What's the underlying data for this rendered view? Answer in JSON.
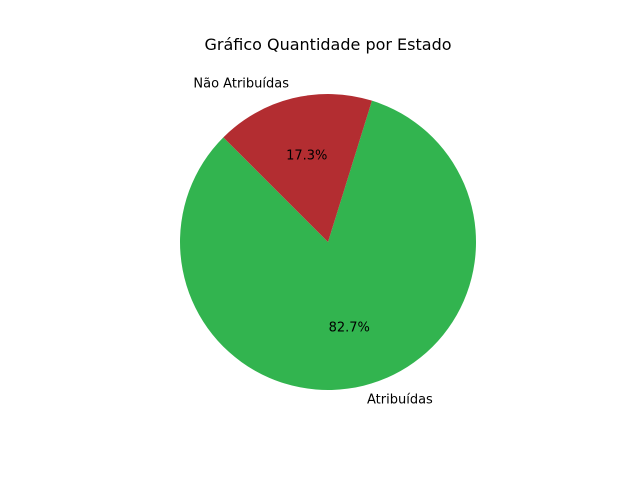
{
  "chart_data": {
    "type": "pie",
    "title": "Gráfico Quantidade por Estado",
    "categories": [
      "Atribuídas",
      "Não Atribuídas"
    ],
    "values": [
      82.7,
      17.3
    ],
    "value_labels": [
      "82.7%",
      "17.3%"
    ],
    "colors": [
      "#32b44f",
      "#b32d31"
    ],
    "start_angle_deg": 135,
    "direction": "counterclockwise",
    "legend": "none"
  }
}
